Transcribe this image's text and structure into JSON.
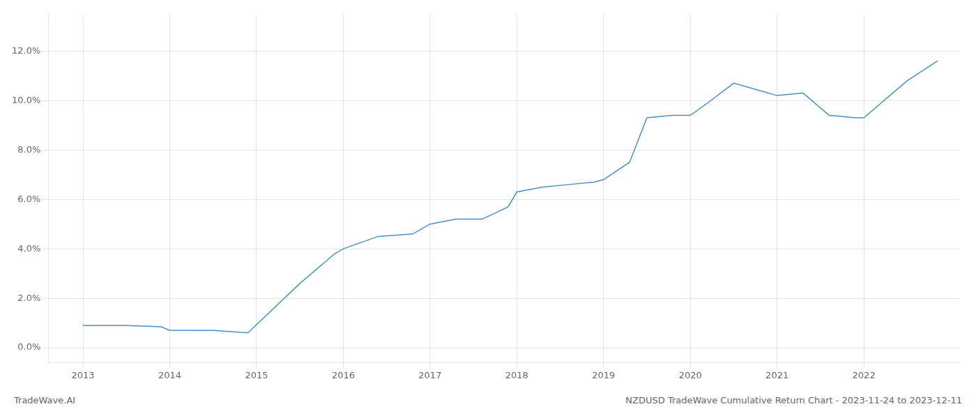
{
  "chart_data": {
    "type": "line",
    "x": [
      2013.0,
      2013.5,
      2013.9,
      2014.0,
      2014.5,
      2014.9,
      2015.5,
      2015.9,
      2016.0,
      2016.4,
      2016.8,
      2017.0,
      2017.3,
      2017.6,
      2017.9,
      2018.0,
      2018.3,
      2018.6,
      2018.9,
      2019.0,
      2019.3,
      2019.5,
      2019.8,
      2020.0,
      2020.2,
      2020.5,
      2020.8,
      2021.0,
      2021.3,
      2021.6,
      2021.9,
      2022.0,
      2022.5,
      2022.85
    ],
    "values": [
      0.009,
      0.009,
      0.0085,
      0.007,
      0.007,
      0.006,
      0.026,
      0.038,
      0.04,
      0.045,
      0.046,
      0.05,
      0.052,
      0.052,
      0.057,
      0.063,
      0.065,
      0.066,
      0.067,
      0.068,
      0.075,
      0.093,
      0.094,
      0.094,
      0.099,
      0.107,
      0.104,
      0.102,
      0.103,
      0.094,
      0.093,
      0.093,
      0.108,
      0.116
    ],
    "color": "#4a90c4",
    "xlim": [
      2012.6,
      2023.1
    ],
    "xticks": [
      2013,
      2014,
      2015,
      2016,
      2017,
      2018,
      2019,
      2020,
      2021,
      2022
    ],
    "ylim": [
      -0.006,
      0.135
    ],
    "yticks": [
      {
        "value": 0.0,
        "label": "0.0%"
      },
      {
        "value": 0.02,
        "label": "2.0%"
      },
      {
        "value": 0.04,
        "label": "4.0%"
      },
      {
        "value": 0.06,
        "label": "6.0%"
      },
      {
        "value": 0.08,
        "label": "8.0%"
      },
      {
        "value": 0.1,
        "label": "10.0%"
      },
      {
        "value": 0.12,
        "label": "12.0%"
      }
    ],
    "grid": true,
    "annotations": [
      "TradeWave.AI",
      "NZDUSD TradeWave Cumulative Return Chart - 2023-11-24 to 2023-12-11"
    ]
  }
}
